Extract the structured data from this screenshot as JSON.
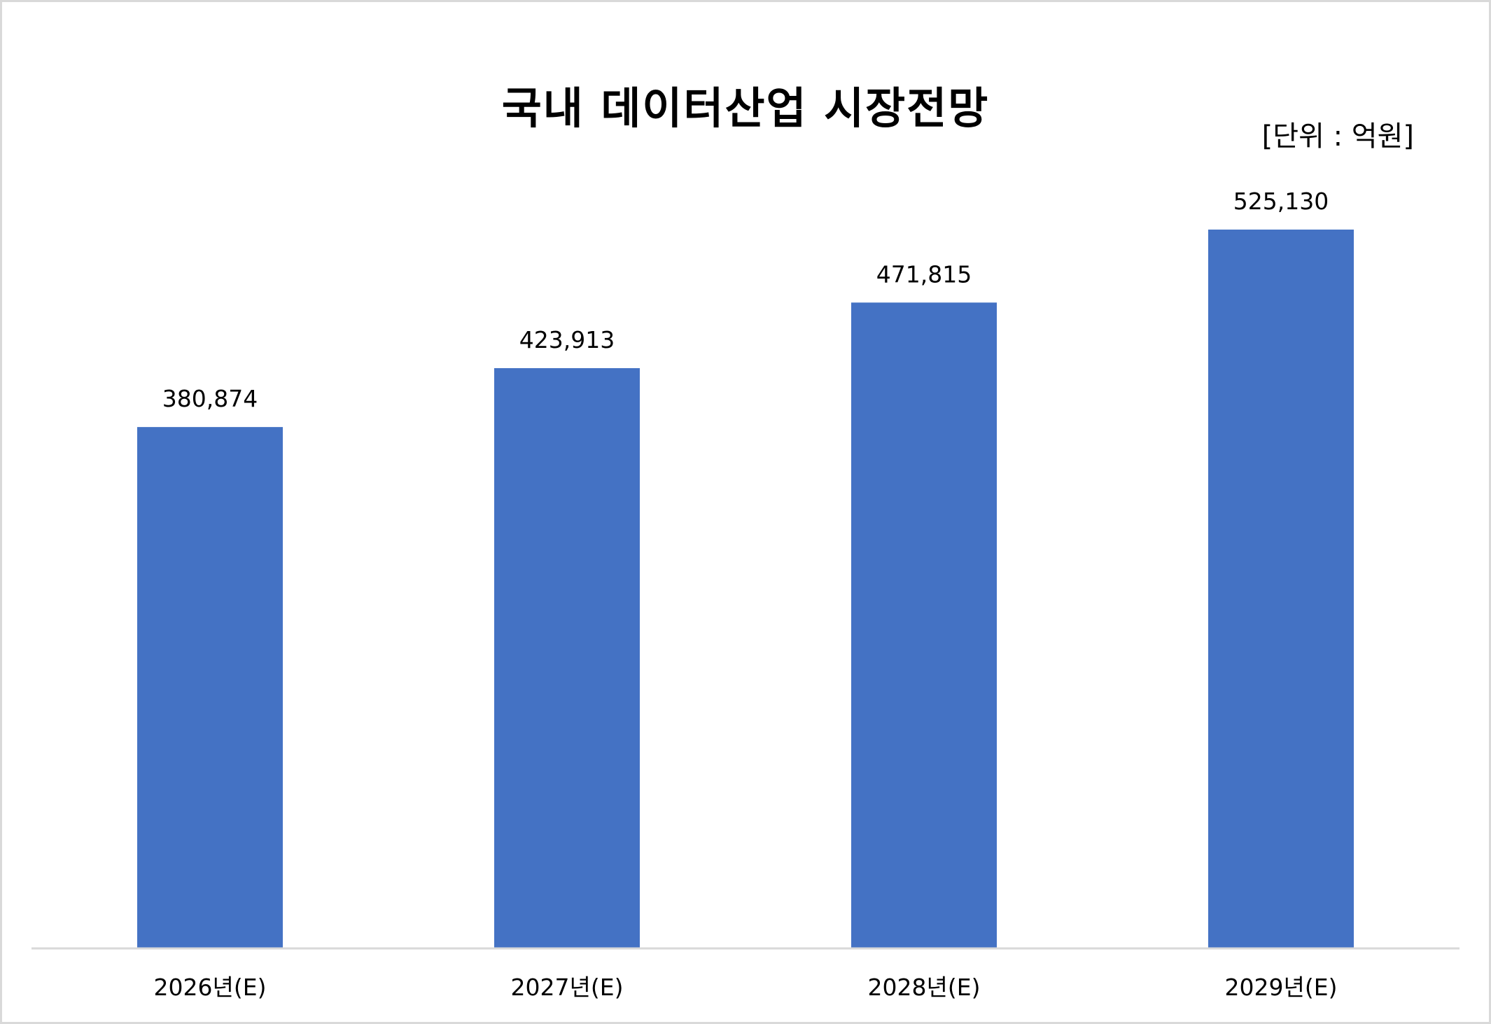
{
  "chart_data": {
    "type": "bar",
    "title": "국내 데이터산업 시장전망",
    "unit_label": "[단위 : 억원]",
    "categories": [
      "2026년(E)",
      "2027년(E)",
      "2028년(E)",
      "2029년(E)"
    ],
    "values": [
      380874,
      423913,
      471815,
      525130
    ],
    "value_labels": [
      "380,874",
      "423,913",
      "471,815",
      "525,130"
    ],
    "ylim": [
      0,
      550000
    ],
    "grid": false,
    "legend": "none",
    "bar_color": "#4472c4",
    "axis_color": "#d9d9d9"
  }
}
